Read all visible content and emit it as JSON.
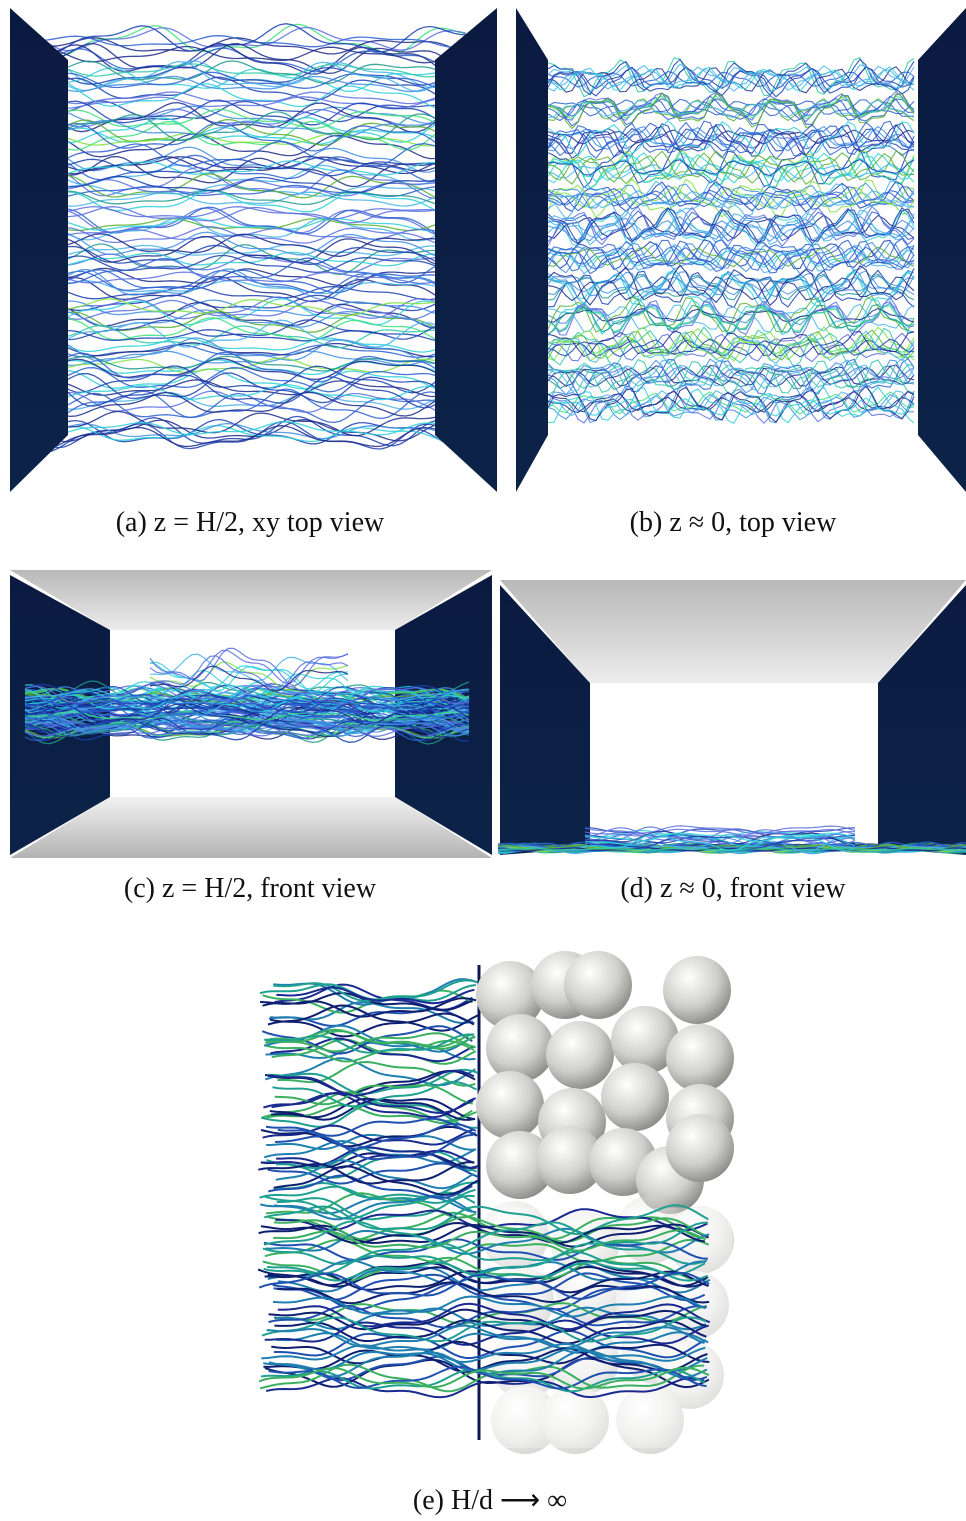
{
  "captions": {
    "a": "(a)  z = H/2, xy top view",
    "b": "(b) z ≈ 0, top view",
    "c": "(c) z = H/2, front view",
    "d": "(d) z ≈ 0, front view",
    "e": "(e) H/d ⟶ ∞"
  }
}
